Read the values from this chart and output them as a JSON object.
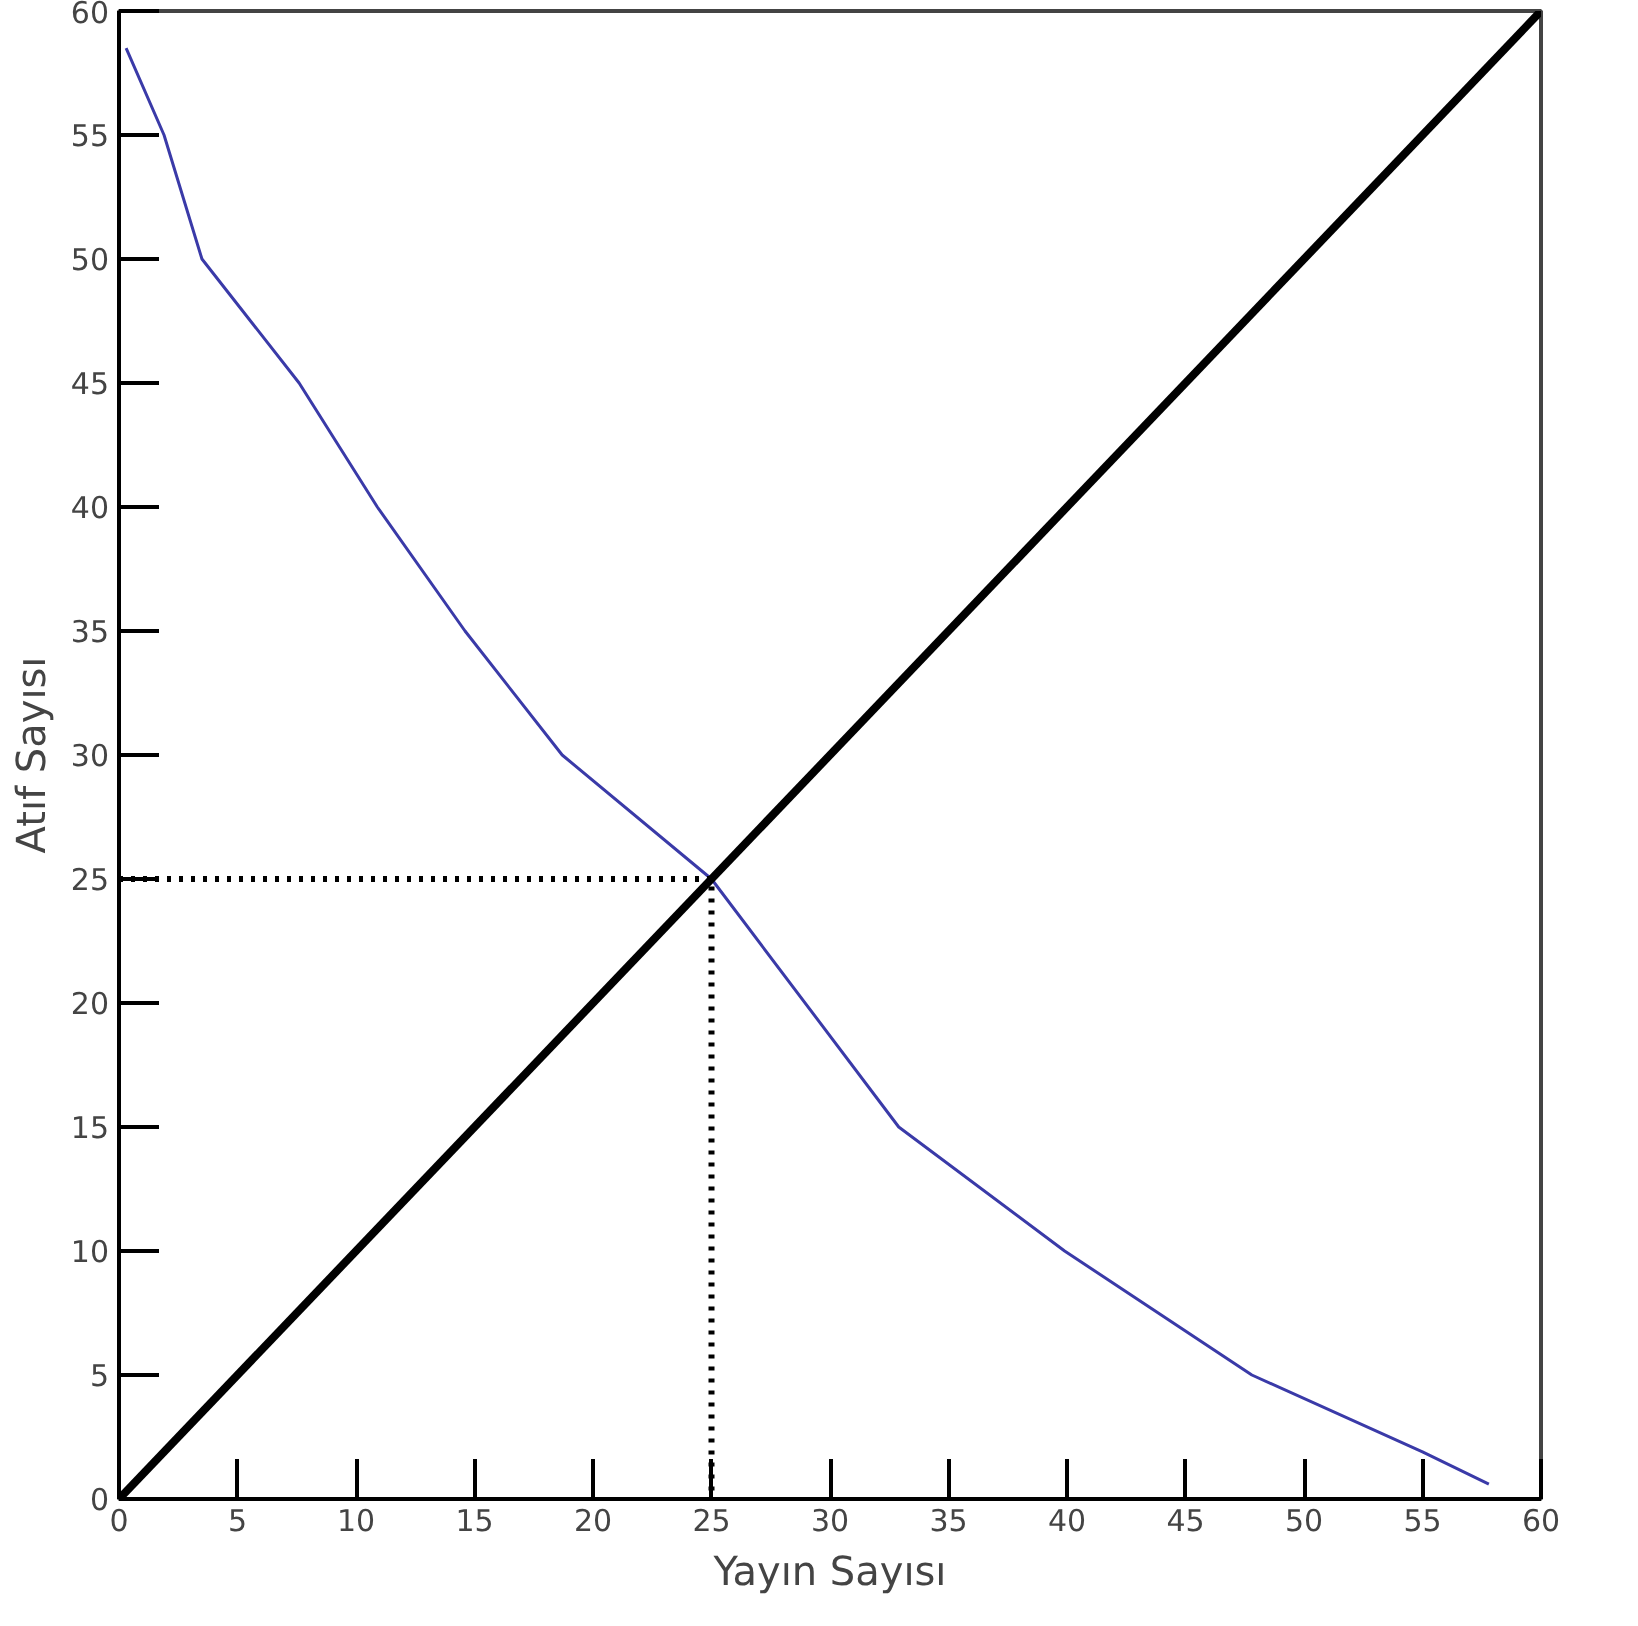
{
  "chart_data": {
    "type": "line",
    "xlabel": "Yayın Sayısı",
    "ylabel": "Atıf Sayısı",
    "xlim": [
      0,
      60
    ],
    "ylim": [
      0,
      60
    ],
    "xticks": [
      0,
      5,
      10,
      15,
      20,
      25,
      30,
      35,
      40,
      45,
      50,
      55,
      60
    ],
    "yticks": [
      0,
      5,
      10,
      15,
      20,
      25,
      30,
      35,
      40,
      45,
      50,
      55,
      60
    ],
    "grid": false,
    "marker": "none",
    "series": [
      {
        "color": "#3a3aa8",
        "line_style": "solid",
        "x": [
          0.3,
          1.9,
          3.5,
          7.6,
          10.9,
          14.6,
          18.7,
          25,
          32.9,
          39.9,
          47.8,
          55,
          57.8
        ],
        "values": [
          58.5,
          55,
          50,
          45,
          40,
          35,
          30,
          25,
          15,
          10,
          5,
          1.9,
          0.6
        ]
      },
      {
        "color": "#000000",
        "line_style": "solid",
        "x": [
          0,
          60
        ],
        "values": [
          0,
          60
        ]
      },
      {
        "color": "#000000",
        "line_style": "dotted",
        "x": [
          0,
          25,
          25
        ],
        "values": [
          25,
          25,
          0
        ]
      }
    ]
  }
}
